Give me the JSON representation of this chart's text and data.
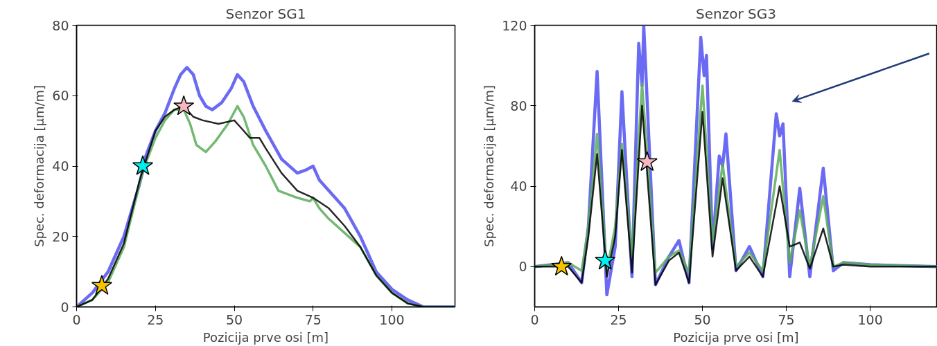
{
  "chart_data": [
    {
      "type": "line",
      "title": "Senzor SG1",
      "xlabel": "Pozicija prve osi [m]",
      "ylabel": "Spec. deformacija [µm/m]",
      "xlim": [
        0,
        120
      ],
      "ylim": [
        0,
        80
      ],
      "xticks": [
        0,
        25,
        50,
        75,
        100
      ],
      "yticks": [
        0,
        20,
        40,
        60,
        80
      ],
      "grid": false,
      "line_style": "solid",
      "series": [
        {
          "color": "#5050f0",
          "x": [
            0,
            5,
            10,
            15,
            20,
            22,
            25,
            28,
            31,
            33,
            35,
            37,
            39,
            41,
            43,
            46,
            49,
            51,
            53,
            56,
            60,
            65,
            70,
            73,
            75,
            77,
            80,
            85,
            90,
            95,
            100,
            105,
            110,
            120
          ],
          "values": [
            0,
            4,
            10,
            20,
            35,
            43,
            50,
            55,
            62,
            66,
            68,
            66,
            60,
            57,
            56,
            58,
            62,
            66,
            64,
            57,
            50,
            42,
            38,
            39,
            40,
            36,
            33,
            28,
            20,
            10,
            5,
            2,
            0,
            0
          ]
        },
        {
          "color": "#5aac5a",
          "x": [
            0,
            5,
            10,
            15,
            20,
            22,
            25,
            28,
            31,
            34,
            36,
            38,
            41,
            44,
            48,
            51,
            53,
            56,
            60,
            64,
            70,
            74,
            75,
            77,
            80,
            85,
            90,
            95,
            100,
            105,
            110,
            120
          ],
          "values": [
            0,
            2,
            7,
            17,
            35,
            41,
            48,
            53,
            56,
            56,
            52,
            46,
            44,
            47,
            52,
            57,
            54,
            46,
            40,
            33,
            31,
            30,
            31,
            28,
            25,
            21,
            17,
            9,
            4,
            1,
            0,
            0
          ]
        },
        {
          "color": "#000000",
          "x": [
            0,
            5,
            10,
            15,
            20,
            25,
            28,
            31,
            34,
            37,
            40,
            45,
            50,
            52,
            55,
            58,
            60,
            65,
            70,
            75,
            80,
            85,
            90,
            95,
            100,
            105,
            110,
            120
          ],
          "values": [
            0,
            2,
            8,
            18,
            36,
            50,
            54,
            56,
            57,
            54,
            53,
            52,
            53,
            51,
            48,
            48,
            45,
            38,
            33,
            31,
            28,
            23,
            17,
            9,
            4,
            1,
            0,
            0
          ]
        },
        {
          "type": "scatter",
          "marker": "star",
          "x": [
            8,
            21,
            34
          ],
          "values": [
            6,
            40,
            57
          ],
          "colors": [
            "#f5c400",
            "#00f0f0",
            "#f5b8c0"
          ]
        }
      ]
    },
    {
      "type": "line",
      "title": "Senzor SG3",
      "xlabel": "Pozicija prve osi [m]",
      "ylabel": "Spec. deformacija [µm/m]",
      "xlim": [
        0,
        120
      ],
      "ylim": [
        -20,
        120
      ],
      "xticks": [
        0,
        25,
        50,
        75,
        100
      ],
      "yticks": [
        0,
        40,
        80,
        120
      ],
      "grid": false,
      "line_style": "solid",
      "series": [
        {
          "color": "#5050f0",
          "x": [
            0,
            5,
            10,
            14,
            16,
            18.6,
            21.5,
            24,
            26,
            29,
            31,
            32,
            32.5,
            36,
            40,
            43,
            46,
            49.5,
            50.5,
            51.2,
            53,
            55,
            56,
            57,
            60,
            64,
            68,
            72,
            73,
            74,
            76,
            79,
            82,
            86,
            89,
            92,
            100,
            120
          ],
          "values": [
            0,
            1,
            2,
            -8,
            20,
            97,
            -14,
            10,
            87,
            -5,
            111,
            90,
            120,
            -9,
            5,
            13,
            -8,
            114,
            95,
            105,
            9,
            55,
            50,
            66,
            -2,
            10,
            -5,
            76,
            65,
            71,
            -5,
            39,
            -5,
            49,
            -2,
            2,
            1,
            0
          ]
        },
        {
          "color": "#5aac5a",
          "x": [
            0,
            5,
            10,
            14,
            16,
            18.6,
            21.5,
            24,
            26,
            29,
            32,
            36,
            40,
            43,
            46,
            50,
            53,
            56,
            60,
            64,
            68,
            73,
            76,
            79,
            82,
            86,
            89,
            92,
            100,
            120
          ],
          "values": [
            0,
            1,
            2,
            -2,
            20,
            66,
            -2,
            20,
            61,
            5,
            91,
            -3,
            5,
            8,
            -3,
            90,
            12,
            51,
            0,
            7,
            -2,
            58,
            2,
            28,
            0,
            35,
            0,
            2,
            1,
            0
          ]
        },
        {
          "color": "#000000",
          "x": [
            0,
            5,
            10,
            14,
            16,
            18.6,
            21.5,
            24,
            26,
            29,
            32,
            36,
            40,
            43,
            46,
            50,
            53,
            56,
            60,
            64,
            68,
            73,
            76,
            79,
            82,
            86,
            89,
            92,
            100,
            120
          ],
          "values": [
            0,
            0,
            0,
            -8,
            15,
            56,
            -5,
            15,
            58,
            -3,
            80,
            -9,
            3,
            7,
            -8,
            77,
            5,
            44,
            -2,
            5,
            -5,
            40,
            10,
            12,
            -1,
            19,
            0,
            1,
            0,
            0
          ]
        },
        {
          "type": "scatter",
          "marker": "star",
          "x": [
            8,
            21,
            33.5
          ],
          "values": [
            0,
            3,
            52
          ],
          "colors": [
            "#f5c400",
            "#00f0f0",
            "#f5b8c0"
          ]
        }
      ]
    }
  ]
}
